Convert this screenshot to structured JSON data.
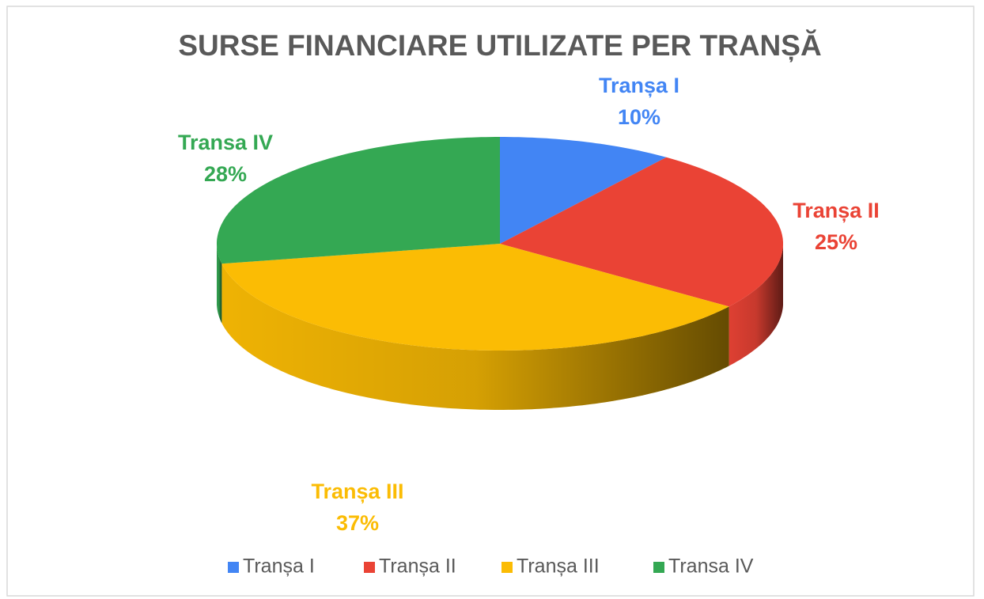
{
  "chart_data": {
    "type": "pie",
    "title": "SURSE FINANCIARE UTILIZATE PER TRANȘĂ",
    "categories": [
      "Tranșa I",
      "Tranșa II",
      "Tranșa III",
      "Transa IV"
    ],
    "values": [
      10,
      25,
      37,
      28
    ],
    "value_labels": [
      "10%",
      "25%",
      "37%",
      "28%"
    ],
    "colors": [
      "#4285f4",
      "#ea4335",
      "#fbbc04",
      "#34a853"
    ],
    "legend": "bottom"
  }
}
